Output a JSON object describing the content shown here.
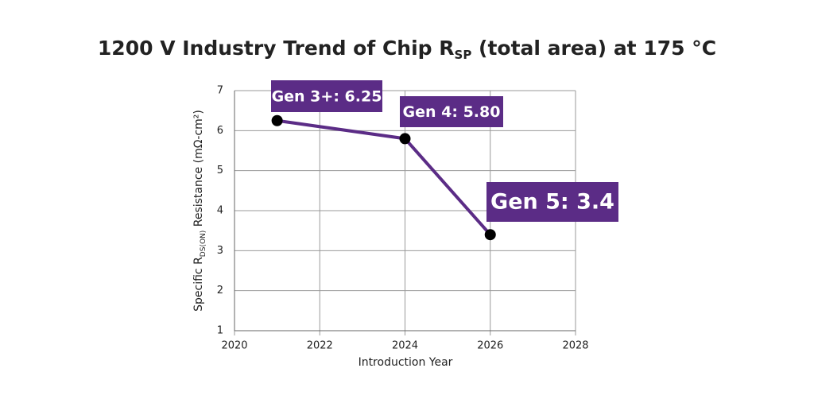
{
  "chart_data": {
    "type": "line",
    "title": [
      "1200 V Industry Trend of Chip R",
      "SP",
      " (total area) at 175 °C"
    ],
    "x_label": "Introduction Year",
    "y_label": [
      "Specific R",
      "DS(ON)",
      " Resistance (mΩ-cm²)"
    ],
    "x": [
      2021,
      2024,
      2026
    ],
    "values": [
      6.25,
      5.8,
      3.4
    ],
    "value_labels": [
      "Gen 3+: 6.25",
      "Gen 4: 5.80",
      "Gen 5: 3.4"
    ],
    "color": "#5b2c86",
    "xlim": [
      2020,
      2028
    ],
    "xticks": [
      2020,
      2022,
      2024,
      2026,
      2028
    ],
    "ylim": [
      1,
      7
    ],
    "yticks": [
      1,
      2,
      3,
      4,
      5,
      6,
      7
    ],
    "grid": true
  }
}
